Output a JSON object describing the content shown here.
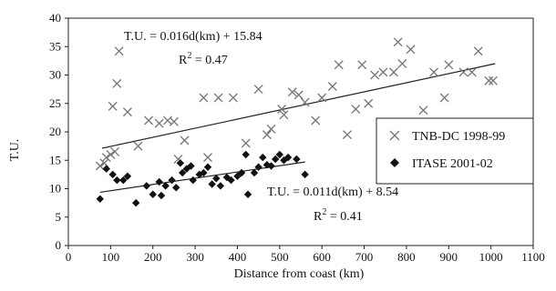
{
  "chart_data": {
    "type": "scatter",
    "xlabel": "Distance from coast (km)",
    "ylabel": "T.U.",
    "xlim": [
      0,
      1100
    ],
    "ylim": [
      0,
      40
    ],
    "x_ticks": [
      0,
      100,
      200,
      300,
      400,
      500,
      600,
      700,
      800,
      900,
      1000,
      1100
    ],
    "y_ticks": [
      0,
      5,
      10,
      15,
      20,
      25,
      30,
      35,
      40
    ],
    "grid": false,
    "legend_position": "center-right",
    "series": [
      {
        "name": "TNB-DC 1998-99",
        "marker": "x",
        "color": "#777777",
        "points": [
          [
            75,
            14
          ],
          [
            85,
            14.5
          ],
          [
            90,
            15.5
          ],
          [
            100,
            16
          ],
          [
            105,
            24.5
          ],
          [
            110,
            16.5
          ],
          [
            115,
            28.5
          ],
          [
            120,
            34.2
          ],
          [
            140,
            23.5
          ],
          [
            165,
            17.5
          ],
          [
            190,
            22
          ],
          [
            215,
            21.5
          ],
          [
            235,
            22
          ],
          [
            250,
            21.8
          ],
          [
            260,
            15.2
          ],
          [
            275,
            18.5
          ],
          [
            320,
            26
          ],
          [
            330,
            15.5
          ],
          [
            355,
            26
          ],
          [
            390,
            26
          ],
          [
            420,
            18
          ],
          [
            450,
            27.5
          ],
          [
            470,
            19.5
          ],
          [
            480,
            20.5
          ],
          [
            505,
            24
          ],
          [
            510,
            23
          ],
          [
            530,
            27
          ],
          [
            545,
            26.5
          ],
          [
            560,
            25.2
          ],
          [
            585,
            22
          ],
          [
            600,
            26
          ],
          [
            625,
            28
          ],
          [
            640,
            31.8
          ],
          [
            660,
            19.5
          ],
          [
            680,
            24
          ],
          [
            695,
            31.8
          ],
          [
            710,
            25
          ],
          [
            725,
            30
          ],
          [
            745,
            30.5
          ],
          [
            770,
            30.5
          ],
          [
            780,
            35.8
          ],
          [
            790,
            32
          ],
          [
            810,
            34.5
          ],
          [
            840,
            23.8
          ],
          [
            865,
            30.5
          ],
          [
            890,
            26
          ],
          [
            900,
            31.8
          ],
          [
            935,
            30.5
          ],
          [
            955,
            30.5
          ],
          [
            970,
            34.2
          ],
          [
            995,
            29
          ],
          [
            1005,
            29
          ]
        ]
      },
      {
        "name": "ITASE 2001-02",
        "marker": "diamond",
        "color": "#111111",
        "points": [
          [
            75,
            8.2
          ],
          [
            90,
            13.5
          ],
          [
            105,
            12.5
          ],
          [
            115,
            11.5
          ],
          [
            130,
            11.5
          ],
          [
            140,
            12.2
          ],
          [
            160,
            7.5
          ],
          [
            185,
            10.5
          ],
          [
            200,
            9
          ],
          [
            215,
            11.2
          ],
          [
            220,
            8.8
          ],
          [
            230,
            10.5
          ],
          [
            245,
            11.5
          ],
          [
            255,
            10.2
          ],
          [
            265,
            14.5
          ],
          [
            270,
            12.8
          ],
          [
            280,
            13.5
          ],
          [
            290,
            14
          ],
          [
            295,
            11.5
          ],
          [
            310,
            12.5
          ],
          [
            320,
            12.8
          ],
          [
            330,
            13.8
          ],
          [
            340,
            10.8
          ],
          [
            350,
            11.8
          ],
          [
            360,
            10.5
          ],
          [
            375,
            12
          ],
          [
            385,
            11.5
          ],
          [
            400,
            12.2
          ],
          [
            410,
            12.8
          ],
          [
            420,
            16
          ],
          [
            425,
            9
          ],
          [
            440,
            12.8
          ],
          [
            450,
            13.8
          ],
          [
            460,
            15.5
          ],
          [
            470,
            14.2
          ],
          [
            480,
            14
          ],
          [
            490,
            15.2
          ],
          [
            500,
            16
          ],
          [
            510,
            15
          ],
          [
            520,
            15.5
          ],
          [
            540,
            15.2
          ],
          [
            560,
            12.5
          ]
        ]
      }
    ],
    "fit_lines": [
      {
        "x": [
          80,
          1010
        ],
        "y": [
          17.12,
          32.0
        ]
      },
      {
        "x": [
          75,
          560
        ],
        "y": [
          9.37,
          14.7
        ]
      }
    ],
    "annotations": [
      {
        "text": "T.U. = 0.016d(km) + 15.84"
      },
      {
        "text": "R",
        "sup": "2",
        "rest": " = 0.47"
      },
      {
        "text": "T.U. = 0.011d(km) + 8.54"
      },
      {
        "text": "R",
        "sup": "2",
        "rest": " = 0.41"
      }
    ]
  }
}
